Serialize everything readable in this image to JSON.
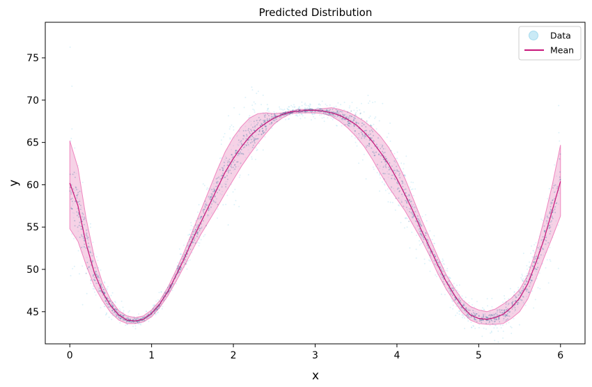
{
  "chart_data": {
    "type": "line",
    "title": "Predicted Distribution",
    "xlabel": "x",
    "ylabel": "y",
    "xlim": [
      -0.3,
      6.3
    ],
    "ylim": [
      41.2,
      79.2
    ],
    "xticks": [
      0,
      1,
      2,
      3,
      4,
      5,
      6
    ],
    "yticks": [
      45,
      50,
      55,
      60,
      65,
      70,
      75
    ],
    "grid": false,
    "legend": {
      "placement": "top-right",
      "entries": [
        "Data",
        "Mean"
      ]
    },
    "colors": {
      "data": "#9ed9ee",
      "data_dense": "#3a6fa0",
      "mean": "#c7157a",
      "band_fill": "#eb9cc8",
      "band_edge": "#ef86bf"
    },
    "series": [
      {
        "name": "Mean",
        "x": [
          0,
          0.1,
          0.2,
          0.3,
          0.4,
          0.5,
          0.6,
          0.7,
          0.8,
          0.9,
          1.0,
          1.1,
          1.2,
          1.3,
          1.4,
          1.5,
          1.6,
          1.7,
          1.8,
          1.9,
          2.0,
          2.1,
          2.2,
          2.3,
          2.4,
          2.5,
          2.6,
          2.7,
          2.8,
          2.9,
          3.0,
          3.1,
          3.2,
          3.3,
          3.4,
          3.5,
          3.6,
          3.7,
          3.8,
          3.9,
          4.0,
          4.1,
          4.2,
          4.3,
          4.4,
          4.5,
          4.6,
          4.7,
          4.8,
          4.9,
          5.0,
          5.1,
          5.2,
          5.3,
          5.4,
          5.5,
          5.6,
          5.7,
          5.8,
          5.9,
          6.0
        ],
        "y": [
          60.2,
          57.5,
          53.0,
          49.6,
          47.3,
          45.7,
          44.6,
          44.0,
          43.9,
          44.1,
          44.8,
          45.9,
          47.4,
          49.3,
          51.3,
          53.5,
          55.5,
          57.5,
          59.5,
          61.5,
          63.1,
          64.5,
          65.7,
          66.6,
          67.3,
          67.9,
          68.3,
          68.6,
          68.7,
          68.8,
          68.8,
          68.7,
          68.5,
          68.2,
          67.7,
          67.1,
          66.2,
          65.1,
          63.8,
          62.4,
          60.7,
          58.8,
          56.8,
          54.6,
          52.6,
          50.5,
          48.6,
          47.0,
          45.6,
          44.6,
          44.2,
          44.1,
          44.3,
          44.7,
          45.5,
          46.6,
          48.3,
          50.8,
          53.6,
          57.0,
          60.4
        ]
      },
      {
        "name": "Data",
        "kind": "scatter",
        "description_points": "dense scatter around mean"
      }
    ],
    "band": {
      "x": [
        0,
        0.1,
        0.2,
        0.3,
        0.4,
        0.5,
        0.6,
        0.7,
        0.8,
        0.9,
        1.0,
        1.1,
        1.2,
        1.3,
        1.4,
        1.5,
        1.6,
        1.7,
        1.8,
        1.9,
        2.0,
        2.1,
        2.2,
        2.3,
        2.4,
        2.5,
        2.6,
        2.7,
        2.8,
        2.9,
        3.0,
        3.1,
        3.2,
        3.3,
        3.4,
        3.5,
        3.6,
        3.7,
        3.8,
        3.9,
        4.0,
        4.1,
        4.2,
        4.3,
        4.4,
        4.5,
        4.6,
        4.7,
        4.8,
        4.9,
        5.0,
        5.1,
        5.2,
        5.3,
        5.4,
        5.5,
        5.6,
        5.7,
        5.8,
        5.9,
        6.0
      ],
      "upper": [
        65.2,
        62.0,
        56.0,
        51.4,
        48.4,
        46.4,
        45.1,
        44.5,
        44.3,
        44.5,
        45.2,
        46.3,
        47.9,
        49.9,
        52.1,
        54.5,
        56.9,
        59.3,
        61.7,
        63.9,
        65.6,
        66.9,
        67.9,
        68.4,
        68.5,
        68.4,
        68.5,
        68.7,
        68.9,
        68.9,
        68.9,
        69.0,
        69.1,
        68.9,
        68.6,
        68.1,
        67.5,
        66.7,
        65.7,
        64.4,
        62.7,
        60.7,
        58.3,
        55.9,
        53.7,
        51.5,
        49.4,
        47.8,
        46.4,
        45.6,
        45.2,
        45.0,
        45.3,
        45.9,
        46.6,
        47.6,
        49.3,
        52.2,
        55.9,
        60.0,
        64.7
      ],
      "lower": [
        54.8,
        53.3,
        50.5,
        48.0,
        46.3,
        44.9,
        44.0,
        43.6,
        43.6,
        43.8,
        44.4,
        45.5,
        46.9,
        48.6,
        50.4,
        52.3,
        54.1,
        55.7,
        57.3,
        59.0,
        60.6,
        62.2,
        63.6,
        64.9,
        66.1,
        67.2,
        67.9,
        68.4,
        68.5,
        68.5,
        68.5,
        68.4,
        68.1,
        67.5,
        66.7,
        65.7,
        64.5,
        63.0,
        61.3,
        59.7,
        58.3,
        56.9,
        55.2,
        53.5,
        51.6,
        49.5,
        47.7,
        46.2,
        44.9,
        44.0,
        43.6,
        43.5,
        43.5,
        43.6,
        44.2,
        45.0,
        46.5,
        48.9,
        51.4,
        53.8,
        56.3
      ]
    }
  }
}
